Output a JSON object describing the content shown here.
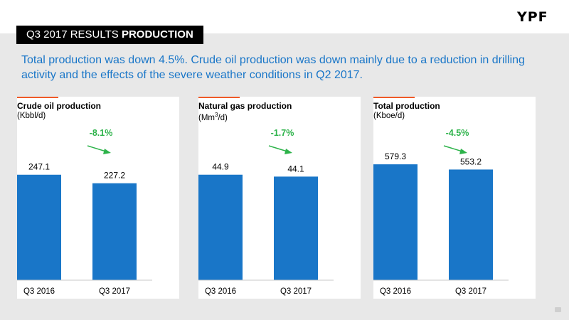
{
  "header": {
    "title_prefix": "Q3 2017 RESULTS",
    "title_bold": "PRODUCTION",
    "logo": "YPF"
  },
  "subtitle": "Total production was down 4.5%. Crude oil production was down mainly due to a reduction in drilling activity and the effects of the severe weather conditions in Q2 2017.",
  "colors": {
    "bar": "#1976c8",
    "change": "#2db34a",
    "accent": "#f05a28",
    "title": "#1976c8"
  },
  "panels": [
    {
      "title": "Crude oil production",
      "unit": "(Kbbl/d)"
    },
    {
      "title": "Natural gas production",
      "unit_prefix": "(Mm",
      "unit_sup": "3",
      "unit_suffix": "/d)"
    },
    {
      "title": "Total production",
      "unit": "(Kboe/d)"
    }
  ],
  "chart_data": [
    {
      "type": "bar",
      "title": "Crude oil production",
      "ylabel": "(Kbbl/d)",
      "categories": [
        "Q3 2016",
        "Q3 2017"
      ],
      "values": [
        247.1,
        227.2
      ],
      "value_labels": [
        "247.1",
        "227.2"
      ],
      "change_label": "-8.1%",
      "ylim": [
        0,
        300
      ]
    },
    {
      "type": "bar",
      "title": "Natural gas production",
      "ylabel": "(Mm3/d)",
      "categories": [
        "Q3 2016",
        "Q3 2017"
      ],
      "values": [
        44.9,
        44.1
      ],
      "value_labels": [
        "44.9",
        "44.1"
      ],
      "change_label": "-1.7%",
      "ylim": [
        0,
        54.5
      ]
    },
    {
      "type": "bar",
      "title": "Total production",
      "ylabel": "(Kboe/d)",
      "categories": [
        "Q3 2016",
        "Q3 2017"
      ],
      "values": [
        579.3,
        553.2
      ],
      "value_labels": [
        "579.3",
        "553.2"
      ],
      "change_label": "-4.5%",
      "ylim": [
        0,
        640
      ]
    }
  ]
}
